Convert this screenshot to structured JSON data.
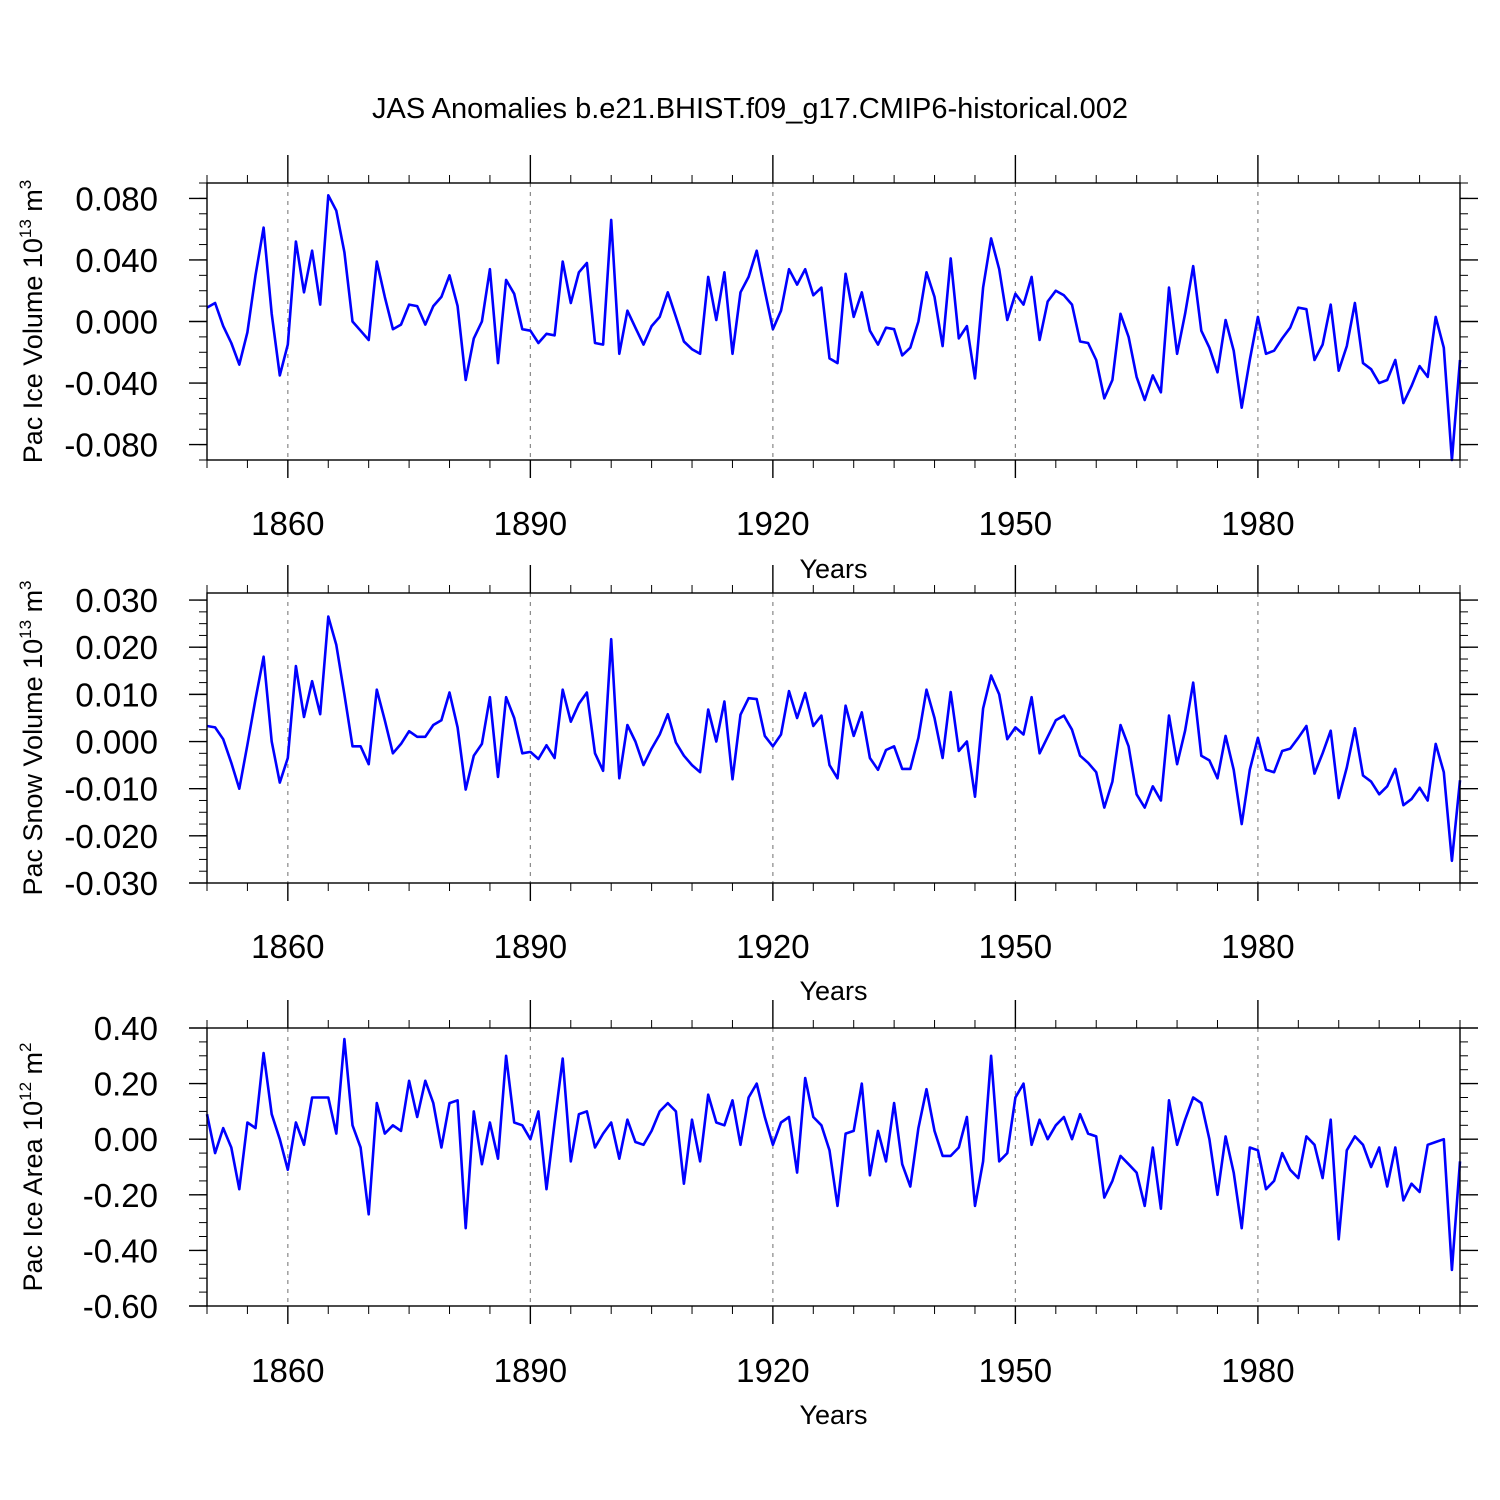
{
  "title": "JAS Anomalies b.e21.BHIST.f09_g17.CMIP6-historical.002",
  "colors": {
    "series": "#0000ff",
    "axis": "#000000",
    "grid": "#888888"
  },
  "chart_data": [
    {
      "type": "line",
      "ylabel_main": "Pac Ice Volume 10",
      "ylabel_sup1": "13",
      "ylabel_mid": " m",
      "ylabel_sup2": "3",
      "xlabel": "Years",
      "xlim": [
        1850,
        2005
      ],
      "ylim": [
        -0.09,
        0.09
      ],
      "yticks": [
        -0.08,
        -0.04,
        0.0,
        0.04,
        0.08
      ],
      "yticklabels": [
        "-0.080",
        "-0.040",
        "0.000",
        "0.040",
        "0.080"
      ],
      "xticks": [
        1860,
        1890,
        1920,
        1950,
        1980
      ],
      "xticklabels": [
        "1860",
        "1890",
        "1920",
        "1950",
        "1980"
      ],
      "x_start": 1850,
      "values": [
        0.009,
        0.012,
        -0.003,
        -0.014,
        -0.028,
        -0.007,
        0.03,
        0.061,
        0.005,
        -0.035,
        -0.015,
        0.052,
        0.019,
        0.046,
        0.011,
        0.082,
        0.072,
        0.045,
        0.0,
        -0.006,
        -0.012,
        0.039,
        0.016,
        -0.005,
        -0.002,
        0.011,
        0.01,
        -0.002,
        0.01,
        0.016,
        0.03,
        0.01,
        -0.038,
        -0.011,
        0.0,
        0.034,
        -0.027,
        0.027,
        0.018,
        -0.005,
        -0.006,
        -0.014,
        -0.008,
        -0.009,
        0.039,
        0.012,
        0.032,
        0.038,
        -0.014,
        -0.015,
        0.066,
        -0.021,
        0.007,
        -0.004,
        -0.015,
        -0.003,
        0.003,
        0.019,
        0.003,
        -0.013,
        -0.018,
        -0.021,
        0.029,
        0.001,
        0.032,
        -0.021,
        0.019,
        0.029,
        0.046,
        0.02,
        -0.005,
        0.007,
        0.034,
        0.024,
        0.034,
        0.017,
        0.022,
        -0.024,
        -0.027,
        0.031,
        0.003,
        0.019,
        -0.006,
        -0.015,
        -0.004,
        -0.005,
        -0.022,
        -0.017,
        0.0,
        0.032,
        0.016,
        -0.016,
        0.041,
        -0.011,
        -0.003,
        -0.037,
        0.022,
        0.054,
        0.034,
        0.001,
        0.018,
        0.011,
        0.029,
        -0.012,
        0.013,
        0.02,
        0.017,
        0.011,
        -0.013,
        -0.014,
        -0.025,
        -0.05,
        -0.038,
        0.005,
        -0.01,
        -0.036,
        -0.051,
        -0.035,
        -0.046,
        0.022,
        -0.021,
        0.005,
        0.036,
        -0.006,
        -0.017,
        -0.033,
        0.001,
        -0.019,
        -0.056,
        -0.025,
        0.003,
        -0.021,
        -0.019,
        -0.011,
        -0.004,
        0.009,
        0.008,
        -0.025,
        -0.015,
        0.011,
        -0.032,
        -0.016,
        0.012,
        -0.027,
        -0.031,
        -0.04,
        -0.038,
        -0.025,
        -0.053,
        -0.042,
        -0.029,
        -0.036,
        0.003,
        -0.017,
        -0.09,
        -0.025
      ]
    },
    {
      "type": "line",
      "ylabel_main": "Pac Snow Volume 10",
      "ylabel_sup1": "13",
      "ylabel_mid": " m",
      "ylabel_sup2": "3",
      "xlabel": "Years",
      "xlim": [
        1850,
        2005
      ],
      "ylim": [
        -0.03,
        0.0315
      ],
      "yticks": [
        -0.03,
        -0.02,
        -0.01,
        0.0,
        0.01,
        0.02,
        0.03
      ],
      "yticklabels": [
        "-0.030",
        "-0.020",
        "-0.010",
        "0.000",
        "0.010",
        "0.020",
        "0.030"
      ],
      "xticks": [
        1860,
        1890,
        1920,
        1950,
        1980
      ],
      "xticklabels": [
        "1860",
        "1890",
        "1920",
        "1950",
        "1980"
      ],
      "x_start": 1850,
      "values": [
        0.0033,
        0.003,
        0.0005,
        -0.0045,
        -0.01,
        -0.0007,
        0.009,
        0.018,
        0.0,
        -0.0087,
        -0.0035,
        0.016,
        0.0052,
        0.0128,
        0.0058,
        0.0265,
        0.0205,
        0.01,
        -0.001,
        -0.001,
        -0.0048,
        0.011,
        0.0045,
        -0.0025,
        -0.0005,
        0.0022,
        0.001,
        0.001,
        0.0035,
        0.0045,
        0.0104,
        0.003,
        -0.0102,
        -0.003,
        -0.0005,
        0.0094,
        -0.0075,
        0.0094,
        0.005,
        -0.0025,
        -0.0022,
        -0.0037,
        -0.0008,
        -0.0035,
        0.011,
        0.0042,
        0.008,
        0.0104,
        -0.0025,
        -0.0062,
        0.0217,
        -0.0078,
        0.0035,
        0.0,
        -0.005,
        -0.0015,
        0.0015,
        0.0058,
        -0.0002,
        -0.003,
        -0.005,
        -0.0065,
        0.0068,
        0.0,
        0.0085,
        -0.008,
        0.0057,
        0.0092,
        0.009,
        0.0012,
        -0.001,
        0.0015,
        0.0107,
        0.005,
        0.0103,
        0.0033,
        0.0055,
        -0.005,
        -0.0078,
        0.0076,
        0.0012,
        0.0062,
        -0.0035,
        -0.006,
        -0.0018,
        -0.001,
        -0.0058,
        -0.0058,
        0.0008,
        0.011,
        0.005,
        -0.0035,
        0.0105,
        -0.002,
        0.0,
        -0.0117,
        0.007,
        0.014,
        0.01,
        0.0005,
        0.003,
        0.0015,
        0.0094,
        -0.0025,
        0.001,
        0.0045,
        0.0055,
        0.0025,
        -0.003,
        -0.0045,
        -0.0065,
        -0.014,
        -0.0085,
        0.0035,
        -0.001,
        -0.0112,
        -0.014,
        -0.0095,
        -0.0125,
        0.0055,
        -0.0048,
        0.0023,
        0.0125,
        -0.003,
        -0.004,
        -0.0078,
        0.0012,
        -0.006,
        -0.0175,
        -0.006,
        0.0008,
        -0.006,
        -0.0065,
        -0.002,
        -0.0015,
        0.0008,
        0.0033,
        -0.0068,
        -0.0025,
        0.0023,
        -0.012,
        -0.0055,
        0.0028,
        -0.0072,
        -0.0085,
        -0.0112,
        -0.0095,
        -0.0058,
        -0.0135,
        -0.0122,
        -0.0098,
        -0.0125,
        -0.0005,
        -0.0065,
        -0.0253,
        -0.0082
      ]
    },
    {
      "type": "line",
      "ylabel_main": "Pac Ice Area 10",
      "ylabel_sup1": "12",
      "ylabel_mid": " m",
      "ylabel_sup2": "2",
      "xlabel": "Years",
      "xlim": [
        1850,
        2005
      ],
      "ylim": [
        -0.6,
        0.4
      ],
      "yticks": [
        -0.6,
        -0.4,
        -0.2,
        0.0,
        0.2,
        0.4
      ],
      "yticklabels": [
        "-0.60",
        "-0.40",
        "-0.20",
        "0.00",
        "0.20",
        "0.40"
      ],
      "xticks": [
        1860,
        1890,
        1920,
        1950,
        1980
      ],
      "xticklabels": [
        "1860",
        "1890",
        "1920",
        "1950",
        "1980"
      ],
      "x_start": 1850,
      "values": [
        0.09,
        -0.05,
        0.04,
        -0.03,
        -0.18,
        0.06,
        0.04,
        0.31,
        0.09,
        0.0,
        -0.11,
        0.06,
        -0.02,
        0.15,
        0.15,
        0.15,
        0.02,
        0.36,
        0.05,
        -0.03,
        -0.27,
        0.13,
        0.02,
        0.05,
        0.03,
        0.21,
        0.08,
        0.21,
        0.13,
        -0.03,
        0.13,
        0.14,
        -0.32,
        0.1,
        -0.09,
        0.06,
        -0.07,
        0.3,
        0.06,
        0.05,
        0.0,
        0.1,
        -0.18,
        0.06,
        0.29,
        -0.08,
        0.09,
        0.1,
        -0.03,
        0.02,
        0.06,
        -0.07,
        0.07,
        -0.01,
        -0.02,
        0.03,
        0.1,
        0.13,
        0.1,
        -0.16,
        0.07,
        -0.08,
        0.16,
        0.06,
        0.05,
        0.14,
        -0.02,
        0.15,
        0.2,
        0.08,
        -0.02,
        0.06,
        0.08,
        -0.12,
        0.22,
        0.08,
        0.05,
        -0.04,
        -0.24,
        0.02,
        0.03,
        0.2,
        -0.13,
        0.03,
        -0.08,
        0.13,
        -0.09,
        -0.17,
        0.04,
        0.18,
        0.03,
        -0.06,
        -0.06,
        -0.03,
        0.08,
        -0.24,
        -0.08,
        0.3,
        -0.08,
        -0.05,
        0.15,
        0.2,
        -0.02,
        0.07,
        0.0,
        0.05,
        0.08,
        0.0,
        0.09,
        0.02,
        0.01,
        -0.21,
        -0.15,
        -0.06,
        -0.09,
        -0.12,
        -0.24,
        -0.03,
        -0.25,
        0.14,
        -0.02,
        0.07,
        0.15,
        0.13,
        0.0,
        -0.2,
        0.01,
        -0.12,
        -0.32,
        -0.03,
        -0.04,
        -0.18,
        -0.15,
        -0.05,
        -0.11,
        -0.14,
        0.01,
        -0.02,
        -0.14,
        0.07,
        -0.36,
        -0.04,
        0.01,
        -0.02,
        -0.1,
        -0.03,
        -0.17,
        -0.03,
        -0.22,
        -0.16,
        -0.19,
        -0.02,
        -0.01,
        0.0,
        -0.47,
        -0.08
      ]
    }
  ]
}
